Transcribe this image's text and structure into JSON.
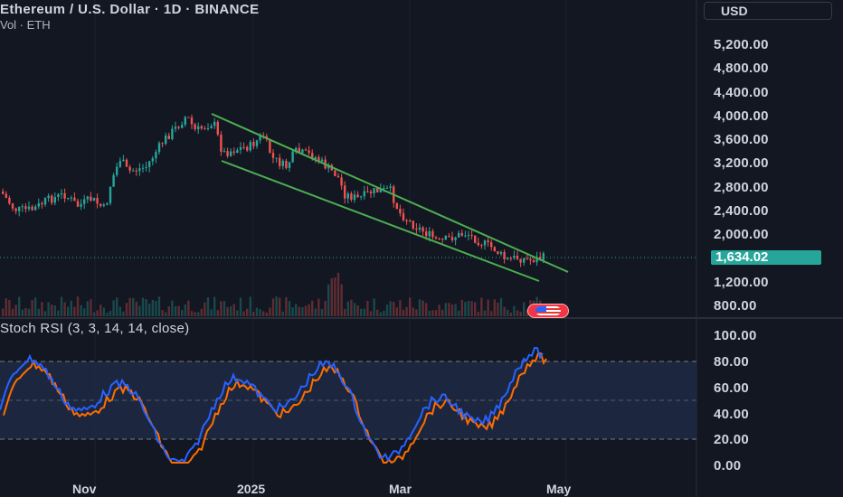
{
  "header": {
    "title": "Ethereum / U.S. Dollar · 1D · BINANCE",
    "volume_label": "Vol · ETH",
    "currency": "USD"
  },
  "price_axis": {
    "labels": [
      "5,200.00",
      "4,800.00",
      "4,400.00",
      "4,000.00",
      "3,600.00",
      "3,200.00",
      "2,800.00",
      "2,400.00",
      "2,000.00",
      "1,200.00",
      "800.00"
    ],
    "last_price": "1,634.02"
  },
  "oscillator": {
    "title": "Stoch RSI (3, 3, 14, 14, close)",
    "axis_labels": [
      "100.00",
      "80.00",
      "60.00",
      "40.00",
      "20.00",
      "0.00"
    ]
  },
  "time_axis": {
    "labels": [
      "Nov",
      "2025",
      "Mar",
      "May"
    ]
  },
  "colors": {
    "background": "#131722",
    "candle_up": "#26a69a",
    "candle_down": "#ef5350",
    "channel": "#4caf50",
    "stoch_k": "#2962ff",
    "stoch_d": "#ff6d00",
    "last_price_tag": "#26a69a"
  },
  "icons": {
    "flag_badge": "us-flag-icon"
  }
}
